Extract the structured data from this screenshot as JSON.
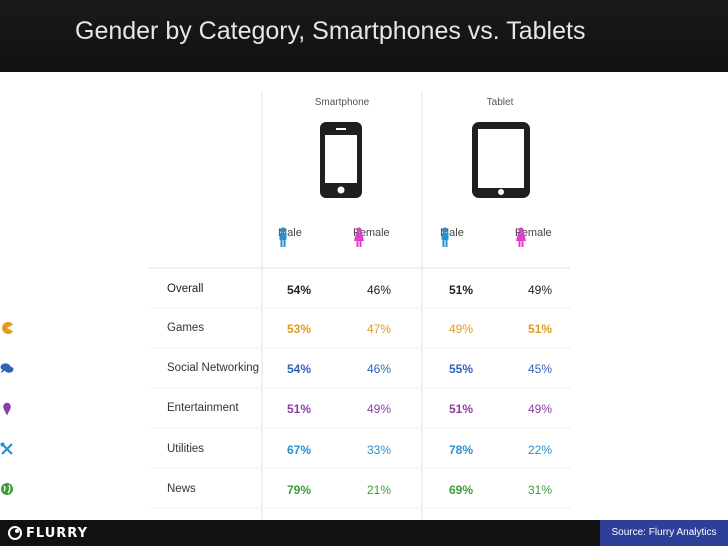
{
  "title": "Gender by Category, Smartphones vs. Tablets",
  "footer": {
    "logo_text": "FLURRY",
    "source": "Source: Flurry Analytics"
  },
  "colors": {
    "male": "#2a8fd0",
    "female": "#e040c8",
    "overall": "#222222",
    "games": "#e39a1c",
    "social": "#2f63b8",
    "entertainment": "#8a3fa0",
    "utilities": "#2a8fd0",
    "news": "#3f9b3a"
  },
  "chart_data": {
    "type": "table",
    "devices": [
      "Smartphone",
      "Tablet"
    ],
    "genders": [
      "Male",
      "Female"
    ],
    "rows": [
      {
        "category": "Overall",
        "icon": "none",
        "color": "#222222",
        "values": [
          "54%",
          "46%",
          "51%",
          "49%"
        ]
      },
      {
        "category": "Games",
        "icon": "pacman-icon",
        "color": "#e39a1c",
        "values": [
          "53%",
          "47%",
          "49%",
          "51%"
        ]
      },
      {
        "category": "Social Networking",
        "icon": "chat-bubbles-icon",
        "color": "#2f63b8",
        "values": [
          "54%",
          "46%",
          "55%",
          "45%"
        ]
      },
      {
        "category": "Entertainment",
        "icon": "ice-cream-icon",
        "color": "#8a3fa0",
        "values": [
          "51%",
          "49%",
          "51%",
          "49%"
        ]
      },
      {
        "category": "Utilities",
        "icon": "tools-icon",
        "color": "#2a8fd0",
        "values": [
          "67%",
          "33%",
          "78%",
          "22%"
        ]
      },
      {
        "category": "News",
        "icon": "globe-icon",
        "color": "#3f9b3a",
        "values": [
          "79%",
          "21%",
          "69%",
          "31%"
        ]
      }
    ]
  }
}
